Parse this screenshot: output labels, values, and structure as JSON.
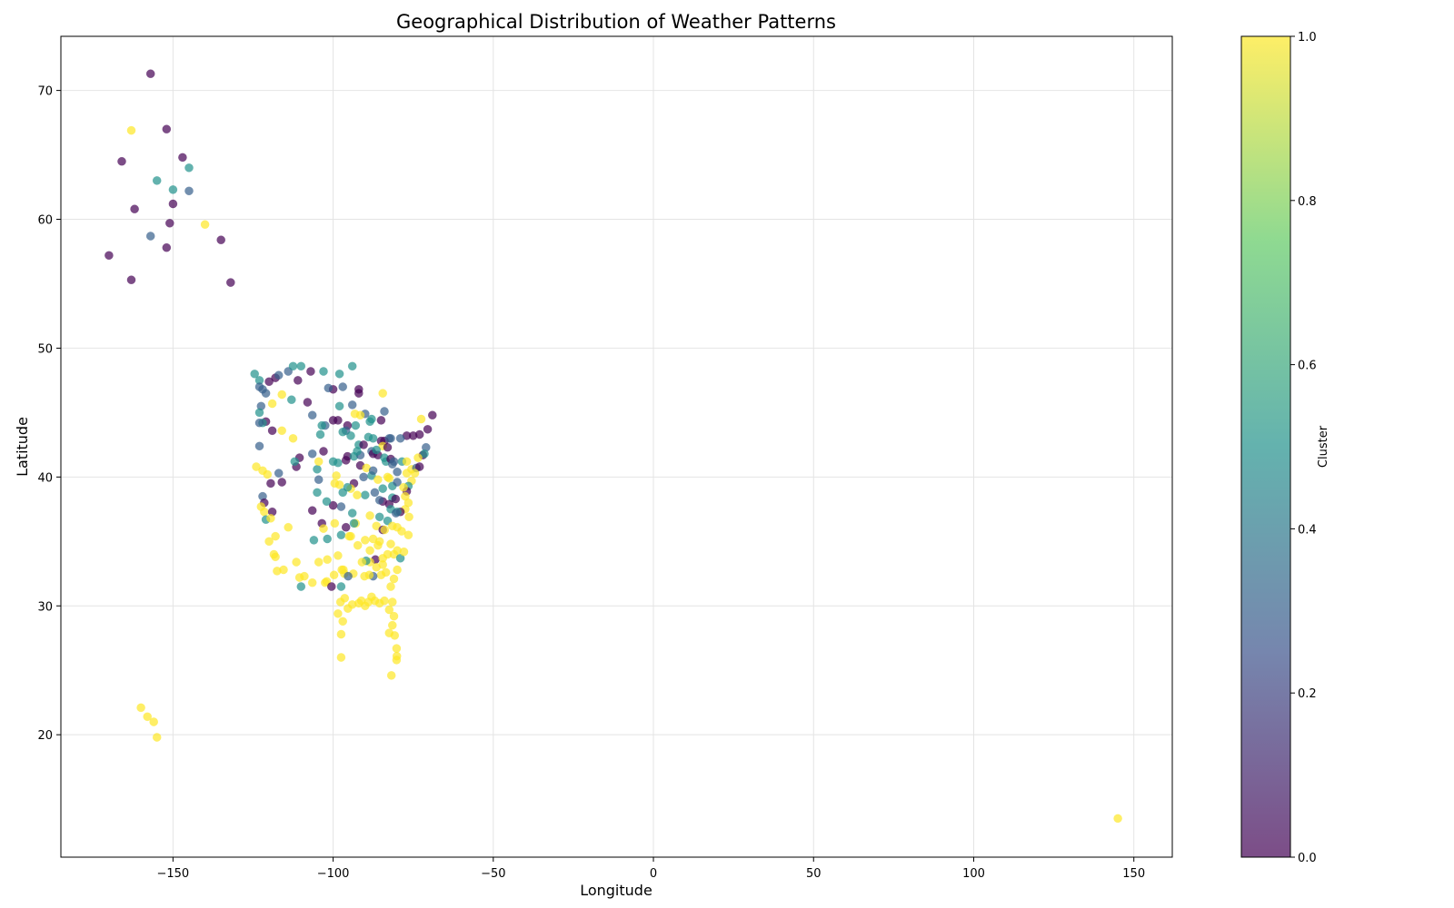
{
  "chart_data": {
    "type": "scatter",
    "title": "Geographical Distribution of Weather Patterns",
    "xlabel": "Longitude",
    "ylabel": "Latitude",
    "xlim": [
      -185,
      162
    ],
    "ylim": [
      10.5,
      74.2
    ],
    "xticks": [
      -150,
      -100,
      -50,
      0,
      50,
      100,
      150
    ],
    "xtick_labels": [
      "−150",
      "−100",
      "−50",
      "0",
      "50",
      "100",
      "150"
    ],
    "yticks": [
      20,
      30,
      40,
      50,
      60,
      70
    ],
    "ytick_labels": [
      "20",
      "30",
      "40",
      "50",
      "60",
      "70"
    ],
    "grid": true,
    "colorbar": {
      "label": "Cluster",
      "range": [
        0,
        1
      ],
      "ticks": [
        0.0,
        0.2,
        0.4,
        0.6,
        0.8,
        1.0
      ],
      "tick_labels": [
        "0.0",
        "0.2",
        "0.4",
        "0.6",
        "0.8",
        "1.0"
      ],
      "colormap": "viridis",
      "colors": [
        "#440154",
        "#3b528b",
        "#21918c",
        "#5ec962",
        "#fde725"
      ]
    },
    "point_alpha": 0.7,
    "points": [
      [
        -157,
        71.3,
        0
      ],
      [
        -152,
        67,
        0
      ],
      [
        -163,
        66.9,
        1
      ],
      [
        -147,
        64.8,
        0
      ],
      [
        -166,
        64.5,
        0
      ],
      [
        -145,
        64,
        0.5
      ],
      [
        -155,
        63,
        0.5
      ],
      [
        -150,
        62.3,
        0.5
      ],
      [
        -145,
        62.2,
        0.3
      ],
      [
        -150,
        61.2,
        0
      ],
      [
        -162,
        60.8,
        0
      ],
      [
        -151,
        59.7,
        0
      ],
      [
        -140,
        59.6,
        1
      ],
      [
        -157,
        58.7,
        0.3
      ],
      [
        -135,
        58.4,
        0
      ],
      [
        -152,
        57.8,
        0
      ],
      [
        -170,
        57.2,
        0
      ],
      [
        -163,
        55.3,
        0
      ],
      [
        -132,
        55.1,
        0
      ],
      [
        -160,
        22.1,
        1
      ],
      [
        -158,
        21.4,
        1
      ],
      [
        -156,
        21,
        1
      ],
      [
        -155,
        19.8,
        1
      ],
      [
        145,
        13.5,
        1
      ],
      [
        -124.5,
        48,
        0.5
      ],
      [
        -123,
        47.5,
        0.5
      ],
      [
        -122,
        46.8,
        0.3
      ],
      [
        -123,
        47,
        0.3
      ],
      [
        -121,
        46.5,
        0.3
      ],
      [
        -120,
        47.4,
        0
      ],
      [
        -118,
        47.7,
        0
      ],
      [
        -117,
        47.9,
        0.3
      ],
      [
        -114,
        48.2,
        0.3
      ],
      [
        -112.5,
        48.6,
        0.5
      ],
      [
        -111,
        47.5,
        0
      ],
      [
        -110,
        48.6,
        0.5
      ],
      [
        -107,
        48.2,
        0
      ],
      [
        -103,
        48.2,
        0.5
      ],
      [
        -98,
        48,
        0.5
      ],
      [
        -94,
        48.6,
        0.5
      ],
      [
        -97,
        47,
        0.3
      ],
      [
        -92,
        46.8,
        0
      ],
      [
        -100,
        46.8,
        0
      ],
      [
        -101.5,
        46.9,
        0.3
      ],
      [
        -84.5,
        46.5,
        1
      ],
      [
        -113,
        46,
        0.5
      ],
      [
        -116,
        46.4,
        1
      ],
      [
        -119,
        45.7,
        1
      ],
      [
        -122.5,
        45.5,
        0.3
      ],
      [
        -123,
        45,
        0.5
      ],
      [
        -108,
        45.8,
        0
      ],
      [
        -98,
        45.5,
        0.5
      ],
      [
        -94,
        45.6,
        0.3
      ],
      [
        -88,
        44.5,
        0.5
      ],
      [
        -84,
        45.1,
        0.3
      ],
      [
        -72.5,
        44.5,
        1
      ],
      [
        -69,
        44.8,
        0
      ],
      [
        -70.5,
        43.7,
        0
      ],
      [
        -73,
        43.3,
        0
      ],
      [
        -75,
        43.2,
        0
      ],
      [
        -77,
        43.2,
        0
      ],
      [
        -79,
        43,
        0.3
      ],
      [
        -82,
        43,
        0.3
      ],
      [
        -84,
        42.8,
        0
      ],
      [
        -85,
        42.8,
        0
      ],
      [
        -85,
        44.4,
        0
      ],
      [
        -87.5,
        43,
        0.5
      ],
      [
        -89,
        43.1,
        0.5
      ],
      [
        -92,
        42.5,
        0.5
      ],
      [
        -93,
        44,
        0.5
      ],
      [
        -95.5,
        44,
        0
      ],
      [
        -98.5,
        44.4,
        0
      ],
      [
        -100,
        44.4,
        0
      ],
      [
        -102.5,
        44,
        0.3
      ],
      [
        -103.5,
        44,
        0.5
      ],
      [
        -106.5,
        44.8,
        0.3
      ],
      [
        -112.5,
        43,
        1
      ],
      [
        -116,
        43.6,
        1
      ],
      [
        -119,
        43.6,
        0
      ],
      [
        -121,
        44.3,
        0
      ],
      [
        -122,
        44.2,
        0.5
      ],
      [
        -123,
        44.2,
        0.3
      ],
      [
        -123,
        42.4,
        0.3
      ],
      [
        -124,
        40.8,
        1
      ],
      [
        -122,
        40.5,
        1
      ],
      [
        -120.5,
        40.2,
        1
      ],
      [
        -117,
        40.3,
        0.3
      ],
      [
        -116,
        39.6,
        0
      ],
      [
        -119.5,
        39.5,
        0
      ],
      [
        -122,
        38.5,
        0.3
      ],
      [
        -121.5,
        38,
        0
      ],
      [
        -122.5,
        37.7,
        1
      ],
      [
        -121.5,
        37.3,
        1
      ],
      [
        -119,
        37.3,
        0
      ],
      [
        -121,
        36.7,
        0.5
      ],
      [
        -119.5,
        36.8,
        1
      ],
      [
        -114,
        36.1,
        1
      ],
      [
        -118,
        35.4,
        1
      ],
      [
        -120,
        35,
        1
      ],
      [
        -118.5,
        34,
        1
      ],
      [
        -118,
        33.8,
        1
      ],
      [
        -117.5,
        32.7,
        1
      ],
      [
        -115.5,
        32.8,
        1
      ],
      [
        -111.5,
        33.4,
        1
      ],
      [
        -110.5,
        32.2,
        1
      ],
      [
        -110,
        31.5,
        0.5
      ],
      [
        -106.5,
        31.8,
        1
      ],
      [
        -106,
        35.1,
        0.5
      ],
      [
        -106.5,
        37.4,
        0
      ],
      [
        -105,
        38.8,
        0.5
      ],
      [
        -104.5,
        39.8,
        0.3
      ],
      [
        -105,
        40.6,
        0.5
      ],
      [
        -104.5,
        41.2,
        1
      ],
      [
        -106.5,
        41.8,
        0.3
      ],
      [
        -110.5,
        41.5,
        0
      ],
      [
        -111.5,
        40.8,
        0
      ],
      [
        -112,
        41.2,
        0.5
      ],
      [
        -103,
        42,
        0
      ],
      [
        -100,
        41.2,
        0.5
      ],
      [
        -98.5,
        41.1,
        0.5
      ],
      [
        -96,
        41.3,
        0
      ],
      [
        -95.5,
        41.6,
        0
      ],
      [
        -93.5,
        41.6,
        0.5
      ],
      [
        -91.5,
        41.7,
        0.3
      ],
      [
        -90.5,
        42.5,
        0
      ],
      [
        -88,
        42,
        0.3
      ],
      [
        -87.5,
        41.8,
        0
      ],
      [
        -86,
        41.7,
        0
      ],
      [
        -84,
        41.5,
        0.5
      ],
      [
        -83.5,
        41.2,
        0.5
      ],
      [
        -82,
        41.4,
        0
      ],
      [
        -81,
        41.2,
        0.3
      ],
      [
        -80,
        40.4,
        0.3
      ],
      [
        -81.5,
        41,
        0.3
      ],
      [
        -78.5,
        41.2,
        0.5
      ],
      [
        -77,
        41.2,
        1
      ],
      [
        -75.5,
        40.6,
        1
      ],
      [
        -74,
        40.7,
        0.3
      ],
      [
        -73,
        40.8,
        0
      ],
      [
        -72,
        41.7,
        0
      ],
      [
        -71,
        42.3,
        0.3
      ],
      [
        -71.5,
        41.8,
        0.5
      ],
      [
        -73.5,
        41.5,
        1
      ],
      [
        -74.5,
        40.3,
        1
      ],
      [
        -75.5,
        39.7,
        1
      ],
      [
        -76.5,
        39.3,
        0.5
      ],
      [
        -77,
        38.9,
        0
      ],
      [
        -77.5,
        38.5,
        1
      ],
      [
        -76.5,
        38,
        1
      ],
      [
        -77.5,
        37.5,
        1
      ],
      [
        -79,
        37.3,
        0
      ],
      [
        -80,
        37.3,
        0.5
      ],
      [
        -81.5,
        38.4,
        0.5
      ],
      [
        -82.5,
        37.9,
        0
      ],
      [
        -84.5,
        38.1,
        0
      ],
      [
        -85.5,
        38.2,
        0.3
      ],
      [
        -86.5,
        36.2,
        1
      ],
      [
        -87,
        38.8,
        0.3
      ],
      [
        -88.5,
        37,
        1
      ],
      [
        -90,
        38.6,
        0.5
      ],
      [
        -90.5,
        40,
        0.3
      ],
      [
        -91.5,
        40.9,
        0
      ],
      [
        -93.5,
        39.5,
        0
      ],
      [
        -94.5,
        39.1,
        1
      ],
      [
        -95.5,
        39.2,
        0.5
      ],
      [
        -97,
        38.8,
        0.5
      ],
      [
        -98,
        39.4,
        1
      ],
      [
        -99.5,
        39.5,
        1
      ],
      [
        -97.5,
        37.7,
        0.3
      ],
      [
        -100,
        37.8,
        0
      ],
      [
        -102,
        38.1,
        0.5
      ],
      [
        -103.5,
        36.4,
        0
      ],
      [
        -101.8,
        35.2,
        0.5
      ],
      [
        -99.5,
        36.4,
        1
      ],
      [
        -97.5,
        35.5,
        0.5
      ],
      [
        -96,
        36.1,
        0
      ],
      [
        -95,
        35.4,
        1
      ],
      [
        -94,
        37.2,
        0.5
      ],
      [
        -92.5,
        38.6,
        1
      ],
      [
        -93,
        36.4,
        1
      ],
      [
        -90,
        35.1,
        1
      ],
      [
        -88.5,
        34.3,
        1
      ],
      [
        -86.8,
        33.6,
        0
      ],
      [
        -86,
        34.7,
        1
      ],
      [
        -85.5,
        35,
        1
      ],
      [
        -84.5,
        33.7,
        1
      ],
      [
        -83,
        34,
        1
      ],
      [
        -82,
        34.8,
        1
      ],
      [
        -81,
        34,
        1
      ],
      [
        -80,
        34.3,
        1
      ],
      [
        -79,
        33.7,
        0.5
      ],
      [
        -80,
        32.8,
        1
      ],
      [
        -81,
        32.1,
        1
      ],
      [
        -82,
        31.5,
        1
      ],
      [
        -84,
        30.4,
        1
      ],
      [
        -85.5,
        30.2,
        1
      ],
      [
        -87,
        30.4,
        1
      ],
      [
        -88,
        30.7,
        1
      ],
      [
        -89,
        30.3,
        1
      ],
      [
        -90,
        30,
        1
      ],
      [
        -91.2,
        30.4,
        1
      ],
      [
        -92,
        30.2,
        1
      ],
      [
        -93.7,
        32.5,
        1
      ],
      [
        -94,
        30.1,
        1
      ],
      [
        -95.4,
        29.8,
        1
      ],
      [
        -97,
        28.8,
        1
      ],
      [
        -97.5,
        27.8,
        1
      ],
      [
        -97.5,
        26,
        1
      ],
      [
        -98.5,
        29.4,
        1
      ],
      [
        -97.7,
        30.3,
        1
      ],
      [
        -96.4,
        30.6,
        1
      ],
      [
        -97.3,
        32.8,
        1
      ],
      [
        -96.8,
        32.8,
        1
      ],
      [
        -99.7,
        32.4,
        1
      ],
      [
        -101.8,
        33.6,
        1
      ],
      [
        -102,
        31.9,
        1
      ],
      [
        -102.5,
        31.8,
        1
      ],
      [
        -104.5,
        33.4,
        1
      ],
      [
        -109,
        32.3,
        1
      ],
      [
        -81.5,
        28.5,
        1
      ],
      [
        -82.5,
        27.9,
        1
      ],
      [
        -81,
        29.2,
        1
      ],
      [
        -80.2,
        26.7,
        1
      ],
      [
        -80.1,
        26.1,
        1
      ],
      [
        -80.2,
        25.8,
        1
      ],
      [
        -81.8,
        24.6,
        1
      ],
      [
        -82.5,
        29.7,
        1
      ],
      [
        -81.5,
        30.3,
        1
      ],
      [
        -80.8,
        27.7,
        1
      ],
      [
        -83.5,
        32.6,
        1
      ],
      [
        -84.5,
        33.2,
        1
      ],
      [
        -85,
        32.4,
        1
      ],
      [
        -86.5,
        33,
        1
      ],
      [
        -87.5,
        32.3,
        0.3
      ],
      [
        -88.7,
        32.4,
        1
      ],
      [
        -88.5,
        33.4,
        1
      ],
      [
        -89.7,
        33.5,
        0.5
      ],
      [
        -90.2,
        32.3,
        1
      ],
      [
        -91,
        33.4,
        1
      ],
      [
        -92.3,
        34.7,
        1
      ],
      [
        -93.5,
        36.4,
        0.5
      ],
      [
        -96.5,
        32.5,
        1
      ],
      [
        -95.3,
        32.3,
        0.3
      ],
      [
        -94.5,
        35.4,
        1
      ],
      [
        -98.5,
        33.9,
        1
      ],
      [
        -97.5,
        31.5,
        0.5
      ],
      [
        -100.5,
        31.5,
        0
      ],
      [
        -103,
        36,
        1
      ],
      [
        -99,
        40.1,
        1
      ],
      [
        -104,
        43.3,
        0.5
      ],
      [
        -89.6,
        40.7,
        1
      ],
      [
        -88,
        40.1,
        0.5
      ],
      [
        -87.5,
        40.5,
        0.3
      ],
      [
        -86,
        39.8,
        1
      ],
      [
        -84.5,
        39.1,
        0.5
      ],
      [
        -83,
        40,
        1
      ],
      [
        -82.5,
        39.9,
        1
      ],
      [
        -81.5,
        39.3,
        0.5
      ],
      [
        -80,
        39.6,
        0.3
      ],
      [
        -77,
        40.3,
        1
      ],
      [
        -78,
        39.2,
        1
      ],
      [
        -80.5,
        38.3,
        0
      ],
      [
        -82,
        37.5,
        0.5
      ],
      [
        -83,
        36.6,
        0.5
      ],
      [
        -84.5,
        35.9,
        0
      ],
      [
        -83.9,
        35.9,
        1
      ],
      [
        -81.5,
        36.2,
        1
      ],
      [
        -80,
        36.1,
        1
      ],
      [
        -78.6,
        35.8,
        1
      ],
      [
        -77.9,
        34.2,
        1
      ],
      [
        -76.5,
        35.5,
        1
      ],
      [
        -76.3,
        36.9,
        1
      ],
      [
        -80.4,
        37.2,
        0.3
      ],
      [
        -85.5,
        36.9,
        0.5
      ],
      [
        -87.5,
        35.2,
        1
      ],
      [
        -84.5,
        42.4,
        1
      ],
      [
        -83,
        42.3,
        0
      ],
      [
        -82.5,
        43,
        0.3
      ],
      [
        -86.5,
        42.1,
        0.5
      ],
      [
        -88.5,
        44.3,
        0.5
      ],
      [
        -90,
        44.9,
        0.3
      ],
      [
        -91.5,
        44.8,
        1
      ],
      [
        -92,
        46.5,
        0
      ],
      [
        -96,
        43.6,
        0.3
      ],
      [
        -97,
        43.5,
        0.5
      ],
      [
        -94.5,
        43.2,
        0.5
      ],
      [
        -93.2,
        44.9,
        1
      ],
      [
        -92.5,
        42,
        0.5
      ]
    ]
  }
}
